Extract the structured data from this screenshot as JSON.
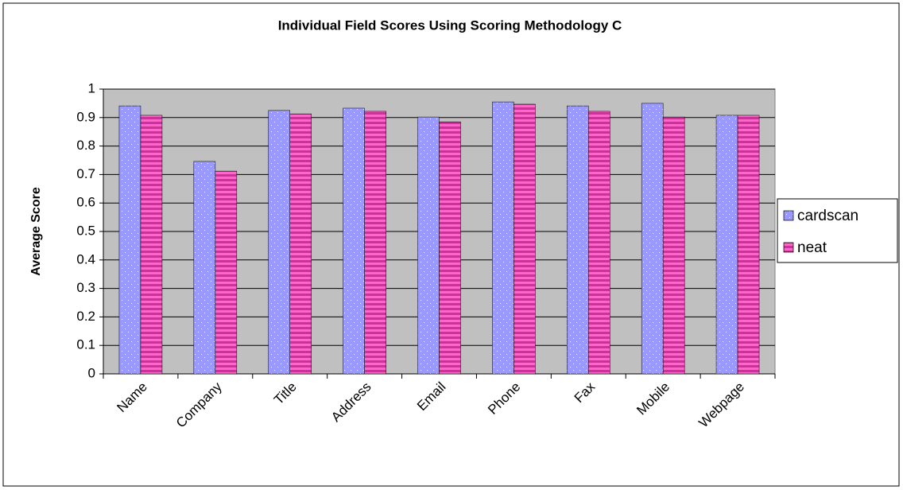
{
  "chart_data": {
    "type": "bar",
    "title": "Individual Field Scores Using Scoring Methodology C",
    "y_label": "Average Score",
    "categories": [
      "Name",
      "Company",
      "Title",
      "Address",
      "Email",
      "Phone",
      "Fax",
      "Mobile",
      "Webpage"
    ],
    "series": [
      {
        "name": "cardscan",
        "color": "#9999ff",
        "values": [
          0.941,
          0.746,
          0.925,
          0.933,
          0.902,
          0.955,
          0.941,
          0.95,
          0.908
        ]
      },
      {
        "name": "neat",
        "color": "#cc3399",
        "values": [
          0.908,
          0.712,
          0.913,
          0.922,
          0.885,
          0.947,
          0.922,
          0.902,
          0.908
        ]
      }
    ],
    "ylim": [
      0,
      1
    ],
    "yticks": [
      0,
      0.1,
      0.2,
      0.3,
      0.4,
      0.5,
      0.6,
      0.7,
      0.8,
      0.9,
      1
    ],
    "grid": true,
    "legend": "right"
  }
}
